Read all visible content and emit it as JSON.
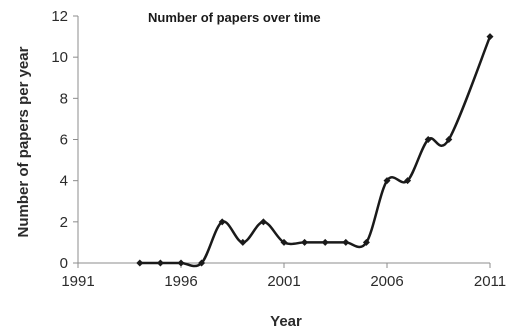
{
  "chart_data": {
    "type": "line",
    "title": "Number of papers over time",
    "xlabel": "Year",
    "ylabel": "Number of papers per year",
    "xlim": [
      1991,
      2011
    ],
    "ylim": [
      0,
      12
    ],
    "x_ticks": [
      "1991",
      "1996",
      "2001",
      "2006",
      "2011"
    ],
    "y_ticks": [
      "0",
      "2",
      "4",
      "6",
      "8",
      "10",
      "12"
    ],
    "grid": false,
    "legend": "none",
    "line_style": "smoothed",
    "marker": "diamond",
    "color": "#1a1a1a",
    "series": [
      {
        "x": [
          1994,
          1995,
          1996,
          1997,
          1998,
          1999,
          2000,
          2001,
          2002,
          2003,
          2004,
          2005,
          2006,
          2007,
          2008,
          2009,
          2011
        ],
        "y": [
          0,
          0,
          0,
          0,
          2,
          1,
          2,
          1,
          1,
          1,
          1,
          1,
          4,
          4,
          6,
          6,
          11
        ]
      }
    ]
  }
}
